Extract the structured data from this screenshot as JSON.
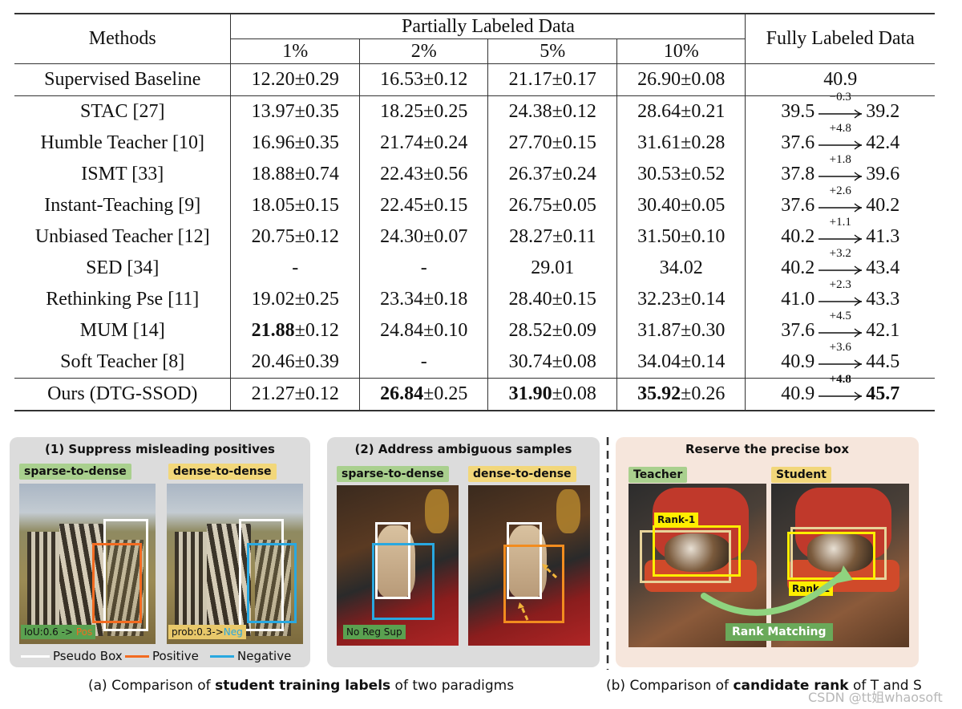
{
  "table": {
    "header": {
      "methods": "Methods",
      "partial": "Partially Labeled Data",
      "full": "Fully Labeled Data",
      "splits": [
        "1%",
        "2%",
        "5%",
        "10%"
      ]
    },
    "baseline": {
      "method": "Supervised Baseline",
      "values": [
        "12.20±0.29",
        "16.53±0.12",
        "21.17±0.17",
        "26.90±0.08"
      ],
      "full": "40.9"
    },
    "rows": [
      {
        "method": "STAC [27]",
        "v": [
          {
            "m": "13.97",
            "s": "±0.35"
          },
          {
            "m": "18.25",
            "s": "±0.25"
          },
          {
            "m": "24.38",
            "s": "±0.12"
          },
          {
            "m": "28.64",
            "s": "±0.21"
          }
        ],
        "from": "39.5",
        "delta": "−0.3",
        "to": "39.2"
      },
      {
        "method": "Humble Teacher [10]",
        "v": [
          {
            "m": "16.96",
            "s": "±0.35"
          },
          {
            "m": "21.74",
            "s": "±0.24"
          },
          {
            "m": "27.70",
            "s": "±0.15"
          },
          {
            "m": "31.61",
            "s": "±0.28"
          }
        ],
        "from": "37.6",
        "delta": "+4.8",
        "to": "42.4"
      },
      {
        "method": "ISMT [33]",
        "v": [
          {
            "m": "18.88",
            "s": "±0.74"
          },
          {
            "m": "22.43",
            "s": "±0.56"
          },
          {
            "m": "26.37",
            "s": "±0.24"
          },
          {
            "m": "30.53",
            "s": "±0.52"
          }
        ],
        "from": "37.8",
        "delta": "+1.8",
        "to": "39.6"
      },
      {
        "method": "Instant-Teaching [9]",
        "v": [
          {
            "m": "18.05",
            "s": "±0.15"
          },
          {
            "m": "22.45",
            "s": "±0.15"
          },
          {
            "m": "26.75",
            "s": "±0.05"
          },
          {
            "m": "30.40",
            "s": "±0.05"
          }
        ],
        "from": "37.6",
        "delta": "+2.6",
        "to": "40.2"
      },
      {
        "method": "Unbiased Teacher [12]",
        "v": [
          {
            "m": "20.75",
            "s": "±0.12"
          },
          {
            "m": "24.30",
            "s": "±0.07"
          },
          {
            "m": "28.27",
            "s": "±0.11"
          },
          {
            "m": "31.50",
            "s": "±0.10"
          }
        ],
        "from": "40.2",
        "delta": "+1.1",
        "to": "41.3"
      },
      {
        "method": "SED [34]",
        "v": [
          {
            "m": "-",
            "s": ""
          },
          {
            "m": "-",
            "s": ""
          },
          {
            "m": "29.01",
            "s": ""
          },
          {
            "m": "34.02",
            "s": ""
          }
        ],
        "from": "40.2",
        "delta": "+3.2",
        "to": "43.4"
      },
      {
        "method": "Rethinking Pse [11]",
        "v": [
          {
            "m": "19.02",
            "s": "±0.25"
          },
          {
            "m": "23.34",
            "s": "±0.18"
          },
          {
            "m": "28.40",
            "s": "±0.15"
          },
          {
            "m": "32.23",
            "s": "±0.14"
          }
        ],
        "from": "41.0",
        "delta": "+2.3",
        "to": "43.3"
      },
      {
        "method": "MUM [14]",
        "v": [
          {
            "m": "21.88",
            "s": "±0.12",
            "b": true
          },
          {
            "m": "24.84",
            "s": "±0.10"
          },
          {
            "m": "28.52",
            "s": "±0.09"
          },
          {
            "m": "31.87",
            "s": "±0.30"
          }
        ],
        "from": "37.6",
        "delta": "+4.5",
        "to": "42.1"
      },
      {
        "method": "Soft Teacher [8]",
        "v": [
          {
            "m": "20.46",
            "s": "±0.39"
          },
          {
            "m": "-",
            "s": ""
          },
          {
            "m": "30.74",
            "s": "±0.08"
          },
          {
            "m": "34.04",
            "s": "±0.14"
          }
        ],
        "from": "40.9",
        "delta": "+3.6",
        "to": "44.5"
      }
    ],
    "ours": {
      "method": "Ours (DTG-SSOD)",
      "v": [
        {
          "m": "21.27",
          "s": "±0.12"
        },
        {
          "m": "26.84",
          "s": "±0.25",
          "b": true
        },
        {
          "m": "31.90",
          "s": "±0.08",
          "b": true
        },
        {
          "m": "35.92",
          "s": "±0.26",
          "b": true
        }
      ],
      "from": "40.9",
      "delta": "+4.8",
      "to": "45.7"
    }
  },
  "figure": {
    "panel1": {
      "title": "(1) Suppress misleading positives",
      "tag_left": "sparse-to-dense",
      "tag_right": "dense-to-dense",
      "label_left_prefix": "IoU:0.6 -> ",
      "label_left_suffix": "Pos",
      "label_right_prefix": "prob:0.3->",
      "label_right_suffix": "Neg",
      "legend": [
        "Pseudo Box",
        "Positive",
        "Negative"
      ]
    },
    "panel2": {
      "title": "(2) Address ambiguous samples",
      "tag_left": "sparse-to-dense",
      "tag_right": "dense-to-dense",
      "label_left": "No Reg Sup"
    },
    "panel3": {
      "title": "Reserve the precise box",
      "tag_left": "Teacher",
      "tag_right": "Student",
      "rank_left": "Rank-1",
      "rank_right": "Rank-1",
      "matching": "Rank Matching"
    },
    "caption_a": {
      "pre": "(a) Comparison of ",
      "bold": "student training labels",
      "post": " of two paradigms"
    },
    "caption_b": {
      "pre": "(b) Comparison of ",
      "bold": "candidate rank",
      "post": " of T and S"
    },
    "watermark": "CSDN @tt姐whaosoft"
  },
  "colors": {
    "panel_gray": "#dcdcdc",
    "panel_peach": "#f6e6dc",
    "pseudo_box": "#ffffff",
    "positive": "#f26b21",
    "negative": "#29a8e0",
    "rank_yellow": "#ffee00",
    "rank_matching": "#7fbf6a"
  }
}
